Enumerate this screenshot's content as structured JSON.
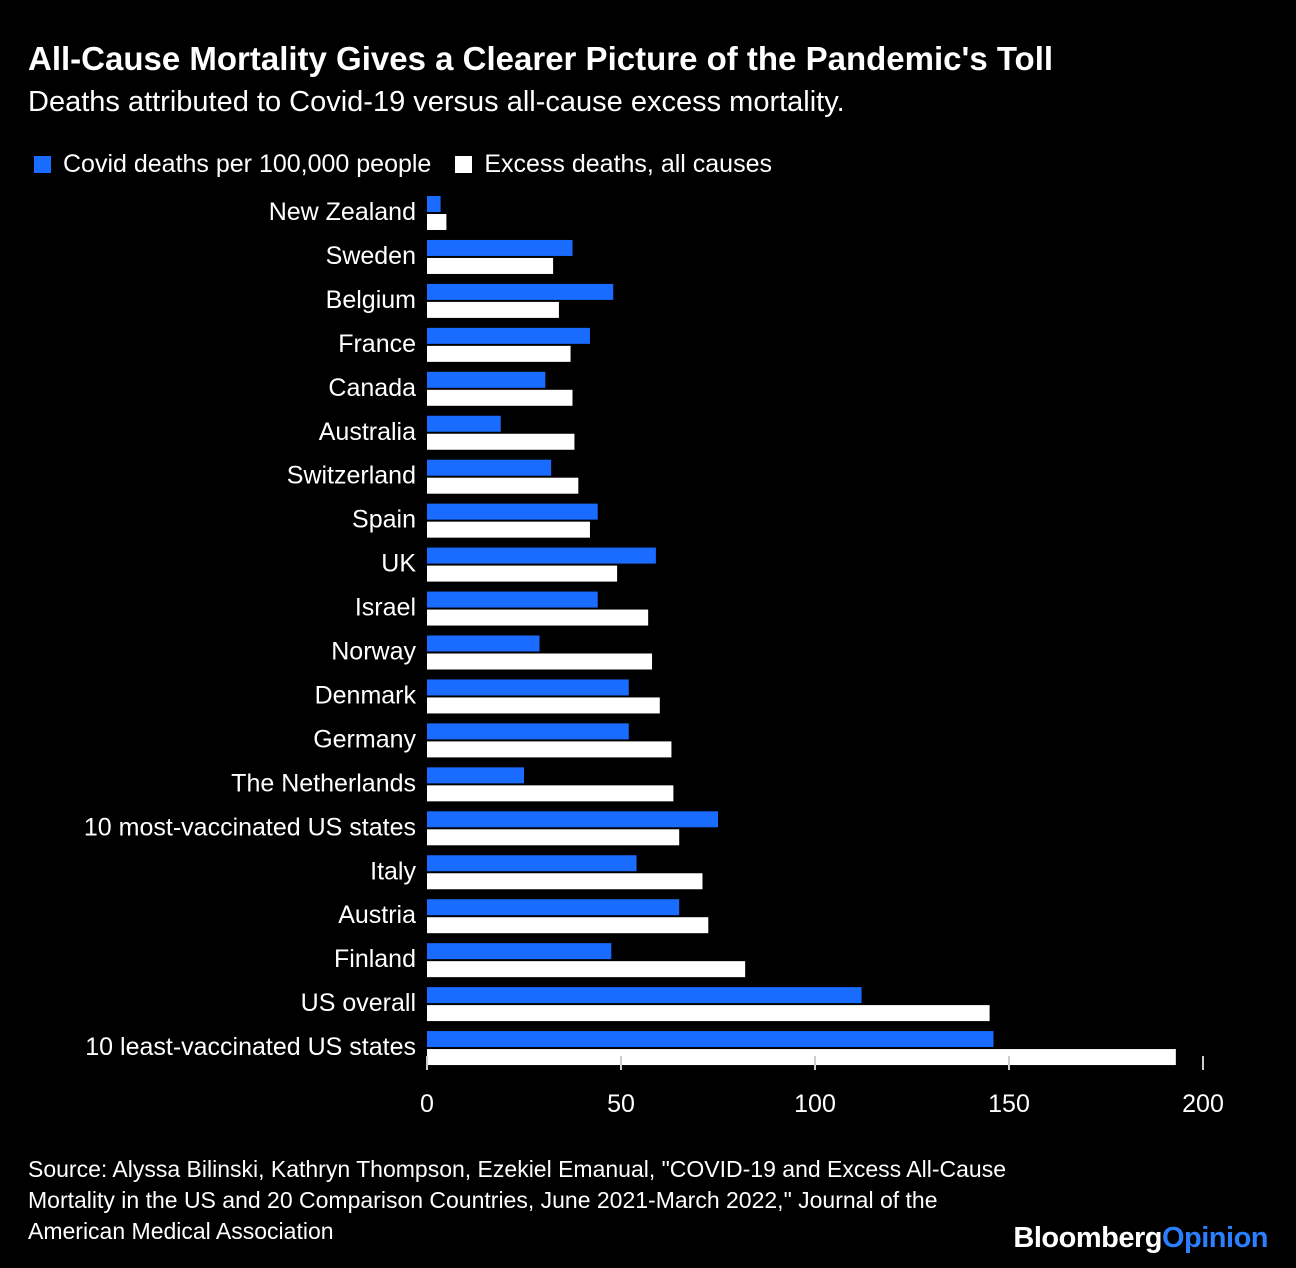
{
  "title": "All-Cause Mortality Gives a Clearer Picture of the Pandemic's Toll",
  "subtitle": "Deaths attributed to Covid-19 versus all-cause excess mortality.",
  "legend": {
    "covid": "Covid deaths per 100,000 people",
    "excess": "Excess deaths, all causes"
  },
  "colors": {
    "covid": "#1a6bff",
    "excess": "#ffffff",
    "background": "#000000"
  },
  "chart_data": {
    "type": "bar",
    "orientation": "horizontal",
    "categories": [
      "New Zealand",
      "Sweden",
      "Belgium",
      "France",
      "Canada",
      "Australia",
      "Switzerland",
      "Spain",
      "UK",
      "Israel",
      "Norway",
      "Denmark",
      "Germany",
      "The Netherlands",
      "10 most-vaccinated US states",
      "Italy",
      "Austria",
      "Finland",
      "US overall",
      "10 least-vaccinated US states"
    ],
    "series": [
      {
        "name": "Covid deaths per 100,000 people",
        "values": [
          3.5,
          37.5,
          48,
          42,
          30.5,
          19,
          32,
          44,
          59,
          44,
          29,
          52,
          52,
          25,
          75,
          54,
          65,
          47.5,
          112,
          146
        ]
      },
      {
        "name": "Excess deaths, all causes",
        "values": [
          5,
          32.5,
          34,
          37,
          37.5,
          38,
          39,
          42,
          49,
          57,
          58,
          60,
          63,
          63.5,
          65,
          71,
          72.5,
          82,
          145,
          193
        ]
      }
    ],
    "xlim": [
      0,
      200
    ],
    "xticks": [
      0,
      50,
      100,
      150,
      200
    ],
    "grid": false,
    "legend_position": "top-left"
  },
  "source": "Source: Alyssa Bilinski, Kathryn Thompson, Ezekiel Emanual, \"COVID-19 and Excess All-Cause Mortality in the US and 20 Comparison Countries, June 2021-March 2022,\" Journal of the American Medical Association",
  "logo": {
    "brand": "Bloomberg",
    "section": "Opinion"
  }
}
